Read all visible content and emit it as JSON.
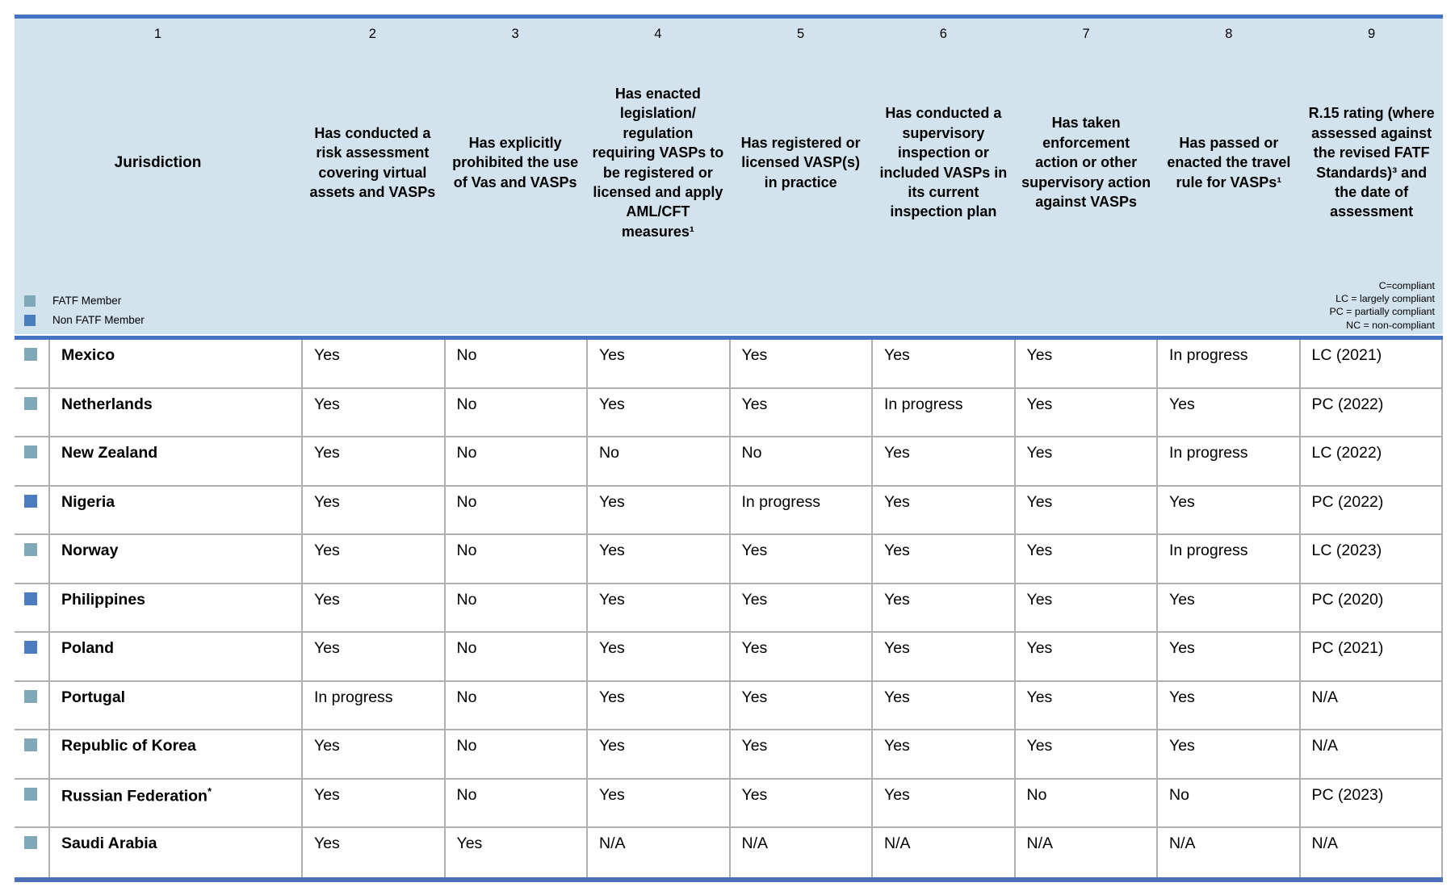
{
  "colors": {
    "header_bg": "#D3E3ED",
    "top_rule": "#4472C4",
    "header_rule": "#4472C4",
    "bottom_rule": "#4C6FB9",
    "grid_line": "#AFAFAF",
    "fatf_member": "#7FA8B9",
    "non_fatf_member": "#4A7CC0"
  },
  "header": {
    "column_numbers": [
      "1",
      "2",
      "3",
      "4",
      "5",
      "6",
      "7",
      "8",
      "9"
    ],
    "columns": [
      "Jurisdiction",
      "Has conducted a risk assessment covering virtual assets and VASPs",
      "Has explicitly prohibited the use of Vas and VASPs",
      "Has enacted legislation/ regulation requiring VASPs to be registered or licensed and apply AML/CFT measures¹",
      "Has registered or licensed VASP(s) in practice",
      "Has conducted a supervisory inspection or included VASPs in its current inspection plan",
      "Has taken enforcement action or other supervisory action against VASPs",
      "Has passed or enacted the travel rule for VASPs¹",
      "R.15 rating (where assessed against the revised FATF Standards)³ and the date of assessment"
    ],
    "legend": [
      {
        "label": "FATF Member",
        "member_type": "fatf_member"
      },
      {
        "label": "Non FATF Member",
        "member_type": "non_fatf_member"
      }
    ],
    "rating_key": [
      "C=compliant",
      "LC = largely compliant",
      "PC = partially compliant",
      "NC = non-compliant"
    ]
  },
  "rows": [
    {
      "jurisdiction": "Mexico",
      "sup": "",
      "member_type": "fatf_member",
      "values": [
        "Yes",
        "No",
        "Yes",
        "Yes",
        "Yes",
        "Yes",
        "In progress",
        "LC (2021)"
      ]
    },
    {
      "jurisdiction": "Netherlands",
      "sup": "",
      "member_type": "fatf_member",
      "values": [
        "Yes",
        "No",
        "Yes",
        "Yes",
        "In progress",
        "Yes",
        "Yes",
        "PC (2022)"
      ]
    },
    {
      "jurisdiction": "New Zealand",
      "sup": "",
      "member_type": "fatf_member",
      "values": [
        "Yes",
        "No",
        "No",
        "No",
        "Yes",
        "Yes",
        "In progress",
        "LC (2022)"
      ]
    },
    {
      "jurisdiction": "Nigeria",
      "sup": "",
      "member_type": "non_fatf_member",
      "values": [
        "Yes",
        "No",
        "Yes",
        "In progress",
        "Yes",
        "Yes",
        "Yes",
        "PC (2022)"
      ]
    },
    {
      "jurisdiction": "Norway",
      "sup": "",
      "member_type": "fatf_member",
      "values": [
        "Yes",
        "No",
        "Yes",
        "Yes",
        "Yes",
        "Yes",
        "In progress",
        "LC (2023)"
      ]
    },
    {
      "jurisdiction": "Philippines",
      "sup": "",
      "member_type": "non_fatf_member",
      "values": [
        "Yes",
        "No",
        "Yes",
        "Yes",
        "Yes",
        "Yes",
        "Yes",
        "PC (2020)"
      ]
    },
    {
      "jurisdiction": "Poland",
      "sup": "",
      "member_type": "non_fatf_member",
      "values": [
        "Yes",
        "No",
        "Yes",
        "Yes",
        "Yes",
        "Yes",
        "Yes",
        "PC (2021)"
      ]
    },
    {
      "jurisdiction": "Portugal",
      "sup": "",
      "member_type": "fatf_member",
      "values": [
        "In progress",
        "No",
        "Yes",
        "Yes",
        "Yes",
        "Yes",
        "Yes",
        "N/A"
      ]
    },
    {
      "jurisdiction": "Republic of Korea",
      "sup": "",
      "member_type": "fatf_member",
      "values": [
        "Yes",
        "No",
        "Yes",
        "Yes",
        "Yes",
        "Yes",
        "Yes",
        "N/A"
      ]
    },
    {
      "jurisdiction": "Russian Federation",
      "sup": "*",
      "member_type": "fatf_member",
      "values": [
        "Yes",
        "No",
        "Yes",
        "Yes",
        "Yes",
        "No",
        "No",
        "PC (2023)"
      ]
    },
    {
      "jurisdiction": "Saudi Arabia",
      "sup": "",
      "member_type": "fatf_member",
      "values": [
        "Yes",
        "Yes",
        "N/A",
        "N/A",
        "N/A",
        "N/A",
        "N/A",
        "N/A"
      ]
    }
  ]
}
